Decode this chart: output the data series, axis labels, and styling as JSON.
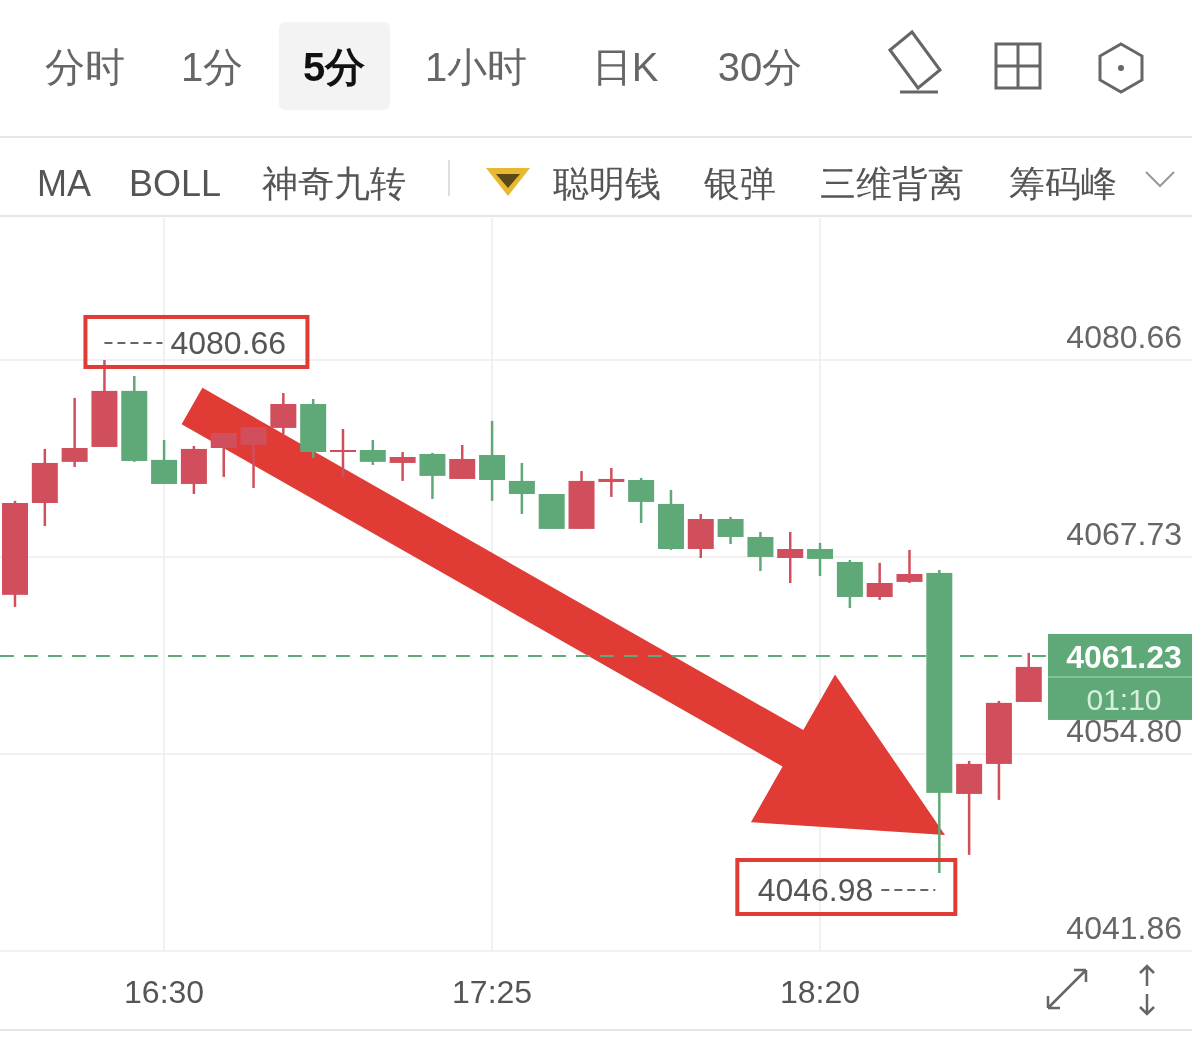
{
  "chart_data": {
    "type": "candlestick",
    "x": [
      16.0833,
      16.1667,
      16.25,
      16.3333,
      16.4167,
      16.5,
      16.5833,
      16.6667,
      16.75,
      16.8333,
      16.9167,
      17.0,
      17.0833,
      17.1667,
      17.25,
      17.3333,
      17.4167,
      17.5,
      17.5833,
      17.6667,
      17.75,
      17.8333,
      17.9167,
      18.0,
      18.0833,
      18.1667,
      18.25,
      18.3333,
      18.4167,
      18.5,
      18.5833,
      18.6667,
      18.75,
      18.8333,
      18.9167
    ],
    "ohlc": [
      [
        4065.24,
        4071.41,
        4064.45,
        4071.27
      ],
      [
        4071.27,
        4074.82,
        4069.76,
        4073.9
      ],
      [
        4073.97,
        4078.17,
        4073.64,
        4074.88
      ],
      [
        4074.95,
        4080.66,
        4074.95,
        4078.63
      ],
      [
        4078.63,
        4079.61,
        4073.97,
        4074.03
      ],
      [
        4074.1,
        4075.41,
        4072.52,
        4072.52
      ],
      [
        4072.52,
        4075.02,
        4071.86,
        4074.82
      ],
      [
        4074.88,
        4075.87,
        4072.98,
        4075.87
      ],
      [
        4075.08,
        4076.26,
        4072.26,
        4076.26
      ],
      [
        4076.2,
        4078.49,
        4075.8,
        4077.77
      ],
      [
        4077.77,
        4078.1,
        4074.23,
        4074.62
      ],
      [
        4074.62,
        4076.13,
        4072.98,
        4074.75
      ],
      [
        4074.75,
        4075.41,
        4073.77,
        4073.97
      ],
      [
        4073.9,
        4074.62,
        4072.72,
        4074.29
      ],
      [
        4074.49,
        4074.56,
        4071.54,
        4073.05
      ],
      [
        4072.85,
        4075.08,
        4072.85,
        4074.16
      ],
      [
        4074.42,
        4076.66,
        4071.41,
        4072.78
      ],
      [
        4072.72,
        4073.9,
        4070.55,
        4071.86
      ],
      [
        4071.86,
        4071.86,
        4069.57,
        4069.57
      ],
      [
        4069.57,
        4073.37,
        4069.57,
        4072.72
      ],
      [
        4072.65,
        4073.57,
        4071.67,
        4072.85
      ],
      [
        4072.78,
        4072.92,
        4069.96,
        4071.34
      ],
      [
        4071.21,
        4072.13,
        4068.19,
        4068.25
      ],
      [
        4068.25,
        4070.55,
        4067.66,
        4070.22
      ],
      [
        4070.22,
        4070.36,
        4068.58,
        4069.04
      ],
      [
        4069.04,
        4069.37,
        4066.81,
        4067.73
      ],
      [
        4067.66,
        4069.37,
        4066.02,
        4068.25
      ],
      [
        4068.25,
        4068.65,
        4066.48,
        4067.6
      ],
      [
        4067.4,
        4067.53,
        4064.38,
        4065.1
      ],
      [
        4065.1,
        4067.34,
        4064.91,
        4066.02
      ],
      [
        4066.09,
        4068.19,
        4066.02,
        4066.61
      ],
      [
        4066.68,
        4066.88,
        4046.98,
        4052.24
      ],
      [
        4052.17,
        4054.34,
        4048.17,
        4054.14
      ],
      [
        4054.14,
        4058.28,
        4051.78,
        4058.15
      ],
      [
        4058.21,
        4061.43,
        4058.21,
        4060.51
      ]
    ],
    "colors": [
      "#d14f5c",
      "#d14f5c",
      "#d14f5c",
      "#d14f5c",
      "#5fa878",
      "#5fa878",
      "#d14f5c",
      "#d14f5c",
      "#d14f5c",
      "#d14f5c",
      "#5fa878",
      "#d14f5c",
      "#5fa878",
      "#d14f5c",
      "#5fa878",
      "#d14f5c",
      "#5fa878",
      "#5fa878",
      "#5fa878",
      "#d14f5c",
      "#d14f5c",
      "#5fa878",
      "#5fa878",
      "#d14f5c",
      "#5fa878",
      "#5fa878",
      "#d14f5c",
      "#5fa878",
      "#5fa878",
      "#d14f5c",
      "#d14f5c",
      "#5fa878",
      "#d14f5c",
      "#d14f5c",
      "#d14f5c"
    ],
    "xlim": [
      16.0414,
      19.3729
    ],
    "ylim": [
      4041.86,
      4089.98
    ],
    "xticks": [
      {
        "value": 16.5,
        "label": "16:30"
      },
      {
        "value": 17.4167,
        "label": "17:25"
      },
      {
        "value": 18.3333,
        "label": "18:20"
      }
    ],
    "yticks": [
      4041.86,
      {
        "value": 4054.8,
        "label": "4054.80"
      },
      4067.73,
      4080.66
    ],
    "grid": true,
    "ref_lines": [
      {
        "axis": "y",
        "value": 4061.23,
        "label": "4061.23",
        "color": "#5fa878",
        "line_style": "dashed"
      }
    ],
    "annotations": [
      "分时",
      "1分",
      "5分",
      "1小时",
      "日K",
      "30分",
      "MA",
      "BOLL",
      "神奇九转",
      "聪明钱",
      "银弹",
      "三维背离",
      "筹码峰",
      "01:10",
      {
        "text": "4080.66",
        "x": 16.3333,
        "y": 4080.66
      },
      {
        "text": "4046.98",
        "x": 18.6667,
        "y": 4046.98
      }
    ]
  }
}
